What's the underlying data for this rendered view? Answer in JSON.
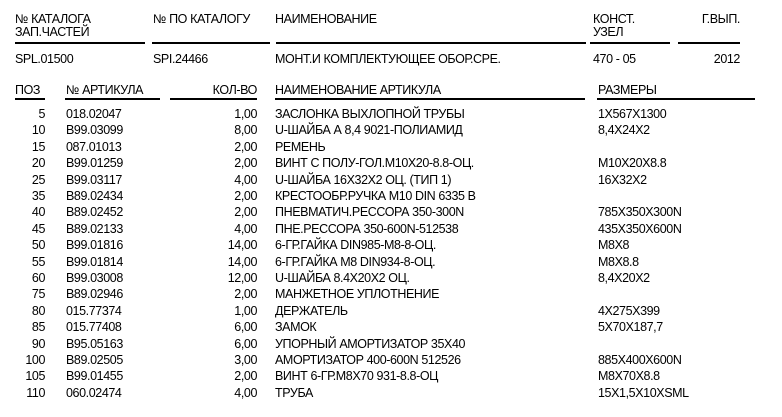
{
  "header": {
    "labels": {
      "catalog_no": "№ КАТАЛОГА",
      "catalog_no2": "ЗАП.ЧАСТЕЙ",
      "by_catalog": "№ ПО КАТАЛОГУ",
      "name": "НАИМЕНОВАНИЕ",
      "assembly": "КОНСТ.",
      "assembly2": "УЗЕЛ",
      "year": "Г.ВЫП."
    },
    "values": {
      "catalog_no": "SPL.01500",
      "by_catalog": "SPI.24466",
      "name": "МОНТ.И КОМПЛЕКТУЮЩЕЕ ОБОР.СРЕ.",
      "assembly": "470 - 05",
      "year": "2012"
    }
  },
  "table": {
    "columns": [
      "ПОЗ",
      "№ АРТИКУЛА",
      "КОЛ-ВО",
      "НАИМЕНОВАНИЕ АРТИКУЛА",
      "РАЗМЕРЫ"
    ],
    "rows": [
      [
        "5",
        "018.02047",
        "1,00",
        "ЗАСЛОНКА ВЫХЛОПНОЙ ТРУБЫ",
        "1X567X1300"
      ],
      [
        "10",
        "B99.03099",
        "8,00",
        "U-ШАЙБА А 8,4 9021-ПОЛИАМИД",
        "8,4X24X2"
      ],
      [
        "15",
        "087.01013",
        "2,00",
        "РЕМЕНЬ",
        ""
      ],
      [
        "20",
        "B99.01259",
        "2,00",
        "ВИНТ С ПОЛУ-ГОЛ.M10X20-8.8-ОЦ.",
        "M10X20X8.8"
      ],
      [
        "25",
        "B99.03117",
        "4,00",
        "U-ШАЙБА 16X32X2 ОЦ. (ТИП 1)",
        "16X32X2"
      ],
      [
        "35",
        "B89.02434",
        "2,00",
        "КРЕСТООБР.РУЧКА M10 DIN 6335 B",
        ""
      ],
      [
        "40",
        "B89.02452",
        "2,00",
        "ПНЕВМАТИЧ.РЕССОРА 350-300N",
        "785X350X300N"
      ],
      [
        "45",
        "B89.02133",
        "4,00",
        "ПНЕ.РЕССОРА 350-600N-512538",
        "435X350X600N"
      ],
      [
        "50",
        "B99.01816",
        "14,00",
        "6-ГР.ГАЙКА DIN985-M8-8-ОЦ.",
        "M8X8"
      ],
      [
        "55",
        "B99.01814",
        "14,00",
        "6-ГР.ГАЙКА M8 DIN934-8-ОЦ.",
        "M8X8.8"
      ],
      [
        "60",
        "B99.03008",
        "12,00",
        "U-ШАЙБА 8.4X20X2 ОЦ.",
        "8,4X20X2"
      ],
      [
        "75",
        "B89.02946",
        "2,00",
        "МАНЖЕТНОЕ УПЛОТНЕНИЕ",
        ""
      ],
      [
        "80",
        "015.77374",
        "1,00",
        "ДЕРЖАТЕЛЬ",
        "4X275X399"
      ],
      [
        "85",
        "015.77408",
        "6,00",
        "ЗАМОК",
        "5X70X187,7"
      ],
      [
        "90",
        "B95.05163",
        "6,00",
        "УПОРНЫЙ АМОРТИЗАТОР 35X40",
        ""
      ],
      [
        "100",
        "B89.02505",
        "3,00",
        "АМОРТИЗАТОР 400-600N 512526",
        "885X400X600N"
      ],
      [
        "105",
        "B99.01455",
        "2,00",
        "ВИНТ 6-ГР.M8X70 931-8.8-ОЦ",
        "M8X70X8.8"
      ],
      [
        "110",
        "060.02474",
        "4,00",
        "ТРУБА",
        "15X1,5X10XSML"
      ]
    ]
  }
}
